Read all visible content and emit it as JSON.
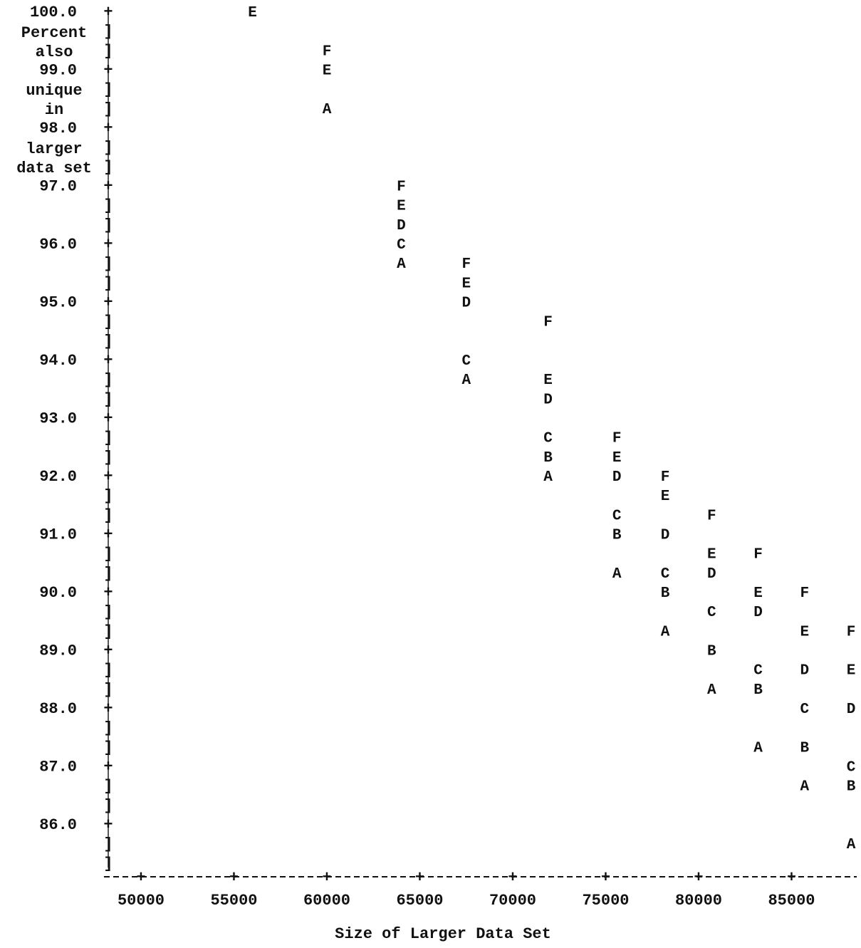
{
  "chart_data": {
    "type": "scatter",
    "title": "",
    "xlabel": "Size of Larger Data Set",
    "ylabel_lines": [
      "Percent",
      "also",
      "unique",
      "in",
      "larger",
      "data set"
    ],
    "xlim": [
      48000,
      88500
    ],
    "ylim": [
      85.3,
      100.2
    ],
    "x_ticks": [
      50000,
      55000,
      60000,
      65000,
      70000,
      75000,
      80000,
      85000
    ],
    "y_ticks": [
      {
        "value": 100.0,
        "label": "100.0"
      },
      {
        "value": 99.0,
        "label": "99.0"
      },
      {
        "value": 98.0,
        "label": "98.0"
      },
      {
        "value": 97.0,
        "label": "97.0"
      },
      {
        "value": 96.0,
        "label": "96.0"
      },
      {
        "value": 95.0,
        "label": "95.0"
      },
      {
        "value": 94.0,
        "label": "94.0"
      },
      {
        "value": 93.0,
        "label": "93.0"
      },
      {
        "value": 92.0,
        "label": "92.0"
      },
      {
        "value": 91.0,
        "label": "91.0"
      },
      {
        "value": 90.0,
        "label": "90.0"
      },
      {
        "value": 89.0,
        "label": "89.0"
      },
      {
        "value": 88.0,
        "label": "88.0"
      },
      {
        "value": 87.0,
        "label": "87.0"
      },
      {
        "value": 86.0,
        "label": "86.0"
      }
    ],
    "points": [
      {
        "symbol": "E",
        "x": 56000,
        "y": 100.0
      },
      {
        "symbol": "F",
        "x": 60000,
        "y": 99.33
      },
      {
        "symbol": "E",
        "x": 60000,
        "y": 99.0
      },
      {
        "symbol": "A",
        "x": 60000,
        "y": 98.33
      },
      {
        "symbol": "F",
        "x": 64000,
        "y": 97.0
      },
      {
        "symbol": "E",
        "x": 64000,
        "y": 96.67
      },
      {
        "symbol": "D",
        "x": 64000,
        "y": 96.33
      },
      {
        "symbol": "C",
        "x": 64000,
        "y": 96.0
      },
      {
        "symbol": "A",
        "x": 64000,
        "y": 95.67
      },
      {
        "symbol": "F",
        "x": 67500,
        "y": 95.67
      },
      {
        "symbol": "E",
        "x": 67500,
        "y": 95.33
      },
      {
        "symbol": "D",
        "x": 67500,
        "y": 95.0
      },
      {
        "symbol": "C",
        "x": 67500,
        "y": 94.0
      },
      {
        "symbol": "A",
        "x": 67500,
        "y": 93.67
      },
      {
        "symbol": "F",
        "x": 71900,
        "y": 94.67
      },
      {
        "symbol": "E",
        "x": 71900,
        "y": 93.67
      },
      {
        "symbol": "D",
        "x": 71900,
        "y": 93.33
      },
      {
        "symbol": "C",
        "x": 71900,
        "y": 92.67
      },
      {
        "symbol": "B",
        "x": 71900,
        "y": 92.33
      },
      {
        "symbol": "A",
        "x": 71900,
        "y": 92.0
      },
      {
        "symbol": "F",
        "x": 75600,
        "y": 92.67
      },
      {
        "symbol": "E",
        "x": 75600,
        "y": 92.33
      },
      {
        "symbol": "D",
        "x": 75600,
        "y": 92.0
      },
      {
        "symbol": "C",
        "x": 75600,
        "y": 91.33
      },
      {
        "symbol": "B",
        "x": 75600,
        "y": 91.0
      },
      {
        "symbol": "A",
        "x": 75600,
        "y": 90.33
      },
      {
        "symbol": "F",
        "x": 78200,
        "y": 92.0
      },
      {
        "symbol": "E",
        "x": 78200,
        "y": 91.67
      },
      {
        "symbol": "D",
        "x": 78200,
        "y": 91.0
      },
      {
        "symbol": "C",
        "x": 78200,
        "y": 90.33
      },
      {
        "symbol": "B",
        "x": 78200,
        "y": 90.0
      },
      {
        "symbol": "A",
        "x": 78200,
        "y": 89.33
      },
      {
        "symbol": "F",
        "x": 80700,
        "y": 91.33
      },
      {
        "symbol": "E",
        "x": 80700,
        "y": 90.67
      },
      {
        "symbol": "D",
        "x": 80700,
        "y": 90.33
      },
      {
        "symbol": "C",
        "x": 80700,
        "y": 89.67
      },
      {
        "symbol": "B",
        "x": 80700,
        "y": 89.0
      },
      {
        "symbol": "A",
        "x": 80700,
        "y": 88.33
      },
      {
        "symbol": "F",
        "x": 83200,
        "y": 90.67
      },
      {
        "symbol": "E",
        "x": 83200,
        "y": 90.0
      },
      {
        "symbol": "D",
        "x": 83200,
        "y": 89.67
      },
      {
        "symbol": "C",
        "x": 83200,
        "y": 88.67
      },
      {
        "symbol": "B",
        "x": 83200,
        "y": 88.33
      },
      {
        "symbol": "A",
        "x": 83200,
        "y": 87.33
      },
      {
        "symbol": "F",
        "x": 85700,
        "y": 90.0
      },
      {
        "symbol": "E",
        "x": 85700,
        "y": 89.33
      },
      {
        "symbol": "D",
        "x": 85700,
        "y": 88.67
      },
      {
        "symbol": "C",
        "x": 85700,
        "y": 88.0
      },
      {
        "symbol": "B",
        "x": 85700,
        "y": 87.33
      },
      {
        "symbol": "A",
        "x": 85700,
        "y": 86.67
      },
      {
        "symbol": "F",
        "x": 88200,
        "y": 89.33
      },
      {
        "symbol": "E",
        "x": 88200,
        "y": 88.67
      },
      {
        "symbol": "D",
        "x": 88200,
        "y": 88.0
      },
      {
        "symbol": "C",
        "x": 88200,
        "y": 87.0
      },
      {
        "symbol": "B",
        "x": 88200,
        "y": 86.67
      },
      {
        "symbol": "A",
        "x": 88200,
        "y": 85.67
      }
    ]
  }
}
